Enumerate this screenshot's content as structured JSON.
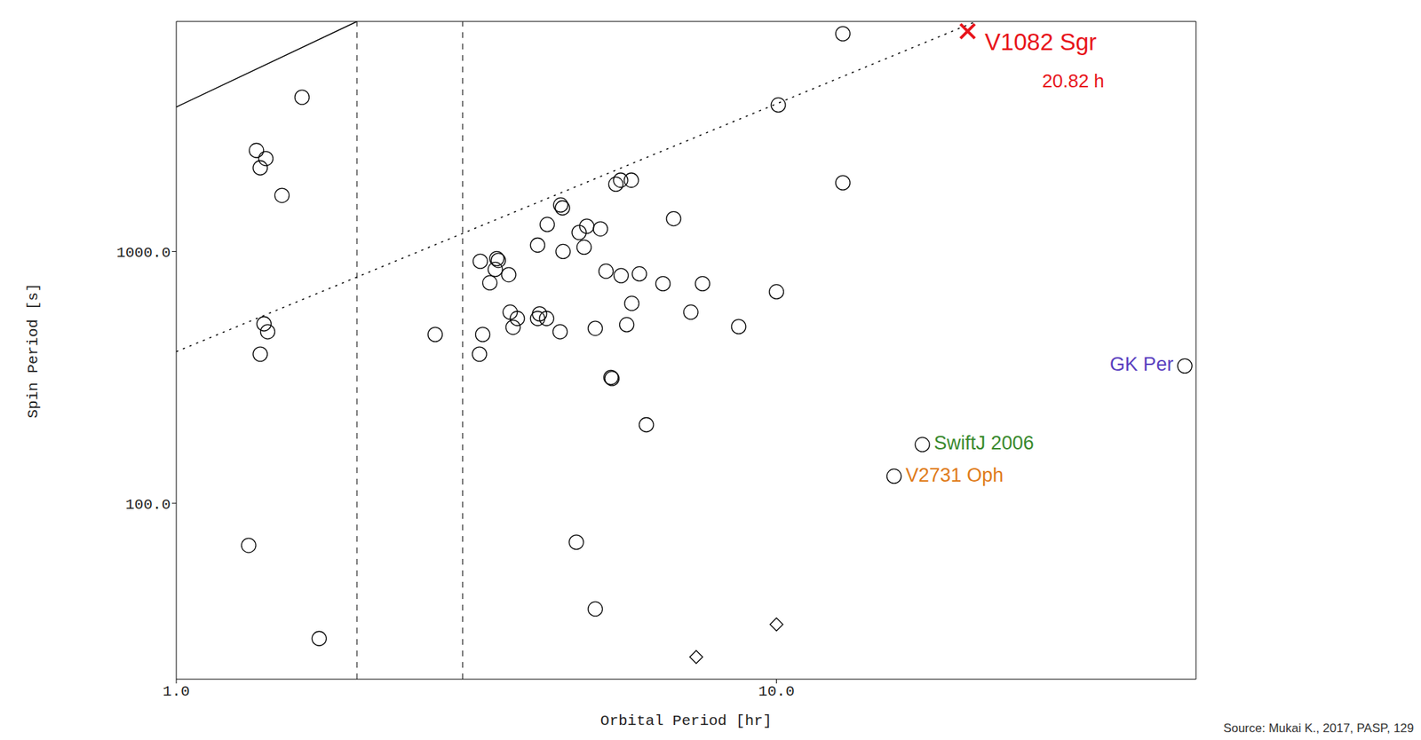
{
  "chart_data": {
    "type": "scatter",
    "xlabel": "Orbital Period [hr]",
    "ylabel": "Spin Period [s]",
    "log": true,
    "grid": false,
    "xlim": [
      1,
      50
    ],
    "ylim": [
      20,
      8200
    ],
    "xticks": [
      {
        "value": 1,
        "label": "1.0"
      },
      {
        "value": 10,
        "label": "10.0"
      }
    ],
    "yticks": [
      {
        "value": 100,
        "label": "100.0"
      },
      {
        "value": 1000,
        "label": "1000.0"
      }
    ],
    "series": [
      {
        "type": "scatter",
        "marker": "circle",
        "color": "#000000",
        "x": [
          1.62,
          1.36,
          1.41,
          1.38,
          1.5,
          1.4,
          1.42,
          1.38,
          1.32,
          1.73,
          2.7,
          3.21,
          3.24,
          3.2,
          3.42,
          3.44,
          3.4,
          3.58,
          3.33,
          3.6,
          3.7,
          3.64,
          4.0,
          4.15,
          4.0,
          4.03,
          4.14,
          4.37,
          4.4,
          4.41,
          4.36,
          4.69,
          4.83,
          5.09,
          4.78,
          5.2,
          4.99,
          4.64,
          4.99,
          5.4,
          5.5,
          5.73,
          5.51,
          5.91,
          5.74,
          5.63,
          5.32,
          5.3,
          6.07,
          6.74,
          6.47,
          7.53,
          7.2,
          8.65,
          10.07,
          10.0,
          12.9,
          12.9
        ],
        "values": [
          4100,
          2520,
          2340,
          2150,
          1670,
          516,
          480,
          391,
          68,
          29,
          468,
          914,
          468,
          391,
          937,
          922,
          849,
          809,
          751,
          574,
          542,
          500,
          1060,
          1280,
          542,
          565,
          542,
          1530,
          1490,
          1000,
          480,
          1190,
          1260,
          1230,
          1040,
          835,
          495,
          70,
          38,
          1850,
          1920,
          1920,
          802,
          815,
          622,
          512,
          313,
          316,
          205,
          1350,
          745,
          745,
          574,
          503,
          3820,
          692,
          7330,
          1875
        ]
      },
      {
        "type": "scatter",
        "marker": "diamond",
        "color": "#000000",
        "x": [
          7.35,
          10.0
        ],
        "values": [
          24.5,
          33
        ]
      },
      {
        "type": "line",
        "line_style": "solid",
        "color": "#000000",
        "x": [
          1,
          2.0
        ],
        "values": [
          3750,
          8200
        ]
      },
      {
        "type": "line",
        "line_style": "dotted",
        "color": "#000000",
        "x": [
          1,
          21.5
        ],
        "values": [
          400,
          8200
        ]
      }
    ],
    "reference_lines": {
      "x": [
        2,
        3
      ],
      "line_style": "dashed"
    },
    "annotations": [
      {
        "text": "V1082 Sgr",
        "sublabel": "20.82 h",
        "x": 20.82,
        "y": 7500,
        "color": "#e8141b",
        "marker": "x"
      },
      {
        "text": "GK Per",
        "x": 47.9,
        "y": 351,
        "color": "#5a3fc0",
        "marker": "circle"
      },
      {
        "text": "SwiftJ 2006",
        "x": 17.5,
        "y": 171,
        "color": "#3a8a2e",
        "marker": "circle"
      },
      {
        "text": "V2731 Oph",
        "x": 15.7,
        "y": 128,
        "color": "#e07b1a",
        "marker": "circle"
      }
    ],
    "source": "Source: Mukai K., 2017, PASP, 129"
  }
}
